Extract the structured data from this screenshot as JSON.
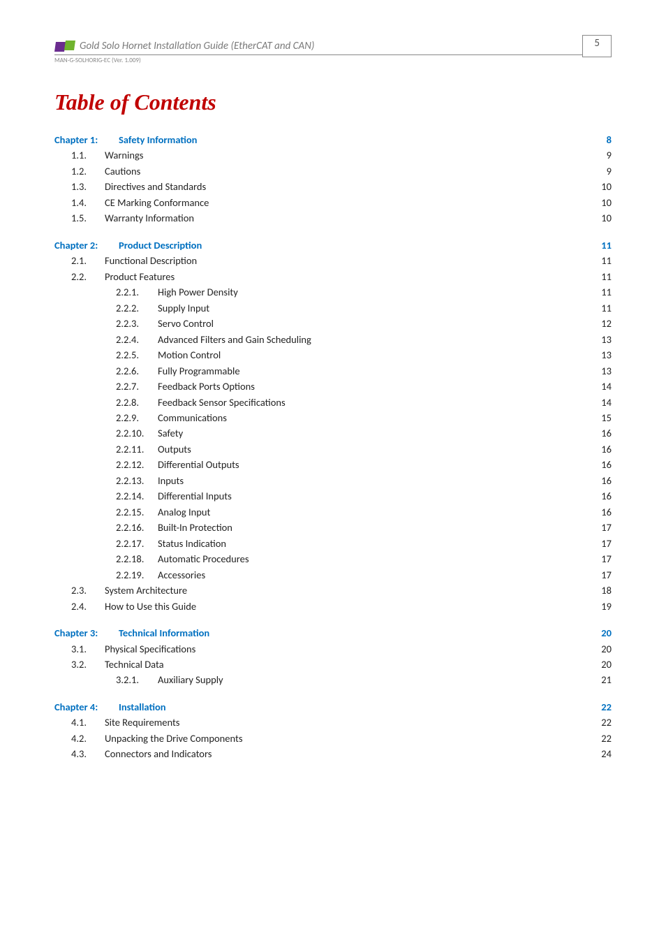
{
  "header": {
    "title": "Gold Solo Hornet Installation Guide (EtherCAT and CAN)",
    "sub": "MAN-G-SOLHORIG-EC (Ver. 1.009)",
    "page_number": "5"
  },
  "toc_title": "Table of Contents",
  "colors": {
    "chapter": "#0070c0",
    "title": "#c00000",
    "body": "#222222"
  },
  "entries": [
    {
      "level": 0,
      "num": "Chapter 1:",
      "label": "Safety Information",
      "page": "8"
    },
    {
      "level": 1,
      "num": "1.1.",
      "label": "Warnings",
      "page": "9"
    },
    {
      "level": 1,
      "num": "1.2.",
      "label": "Cautions",
      "page": "9"
    },
    {
      "level": 1,
      "num": "1.3.",
      "label": "Directives and Standards",
      "page": "10"
    },
    {
      "level": 1,
      "num": "1.4.",
      "label": "CE Marking Conformance",
      "page": "10"
    },
    {
      "level": 1,
      "num": "1.5.",
      "label": "Warranty Information",
      "page": "10"
    },
    {
      "level": 0,
      "num": "Chapter 2:",
      "label": "Product Description",
      "page": "11"
    },
    {
      "level": 1,
      "num": "2.1.",
      "label": "Functional Description",
      "page": "11"
    },
    {
      "level": 1,
      "num": "2.2.",
      "label": "Product Features",
      "page": "11"
    },
    {
      "level": 2,
      "num": "2.2.1.",
      "label": "High Power Density",
      "page": "11"
    },
    {
      "level": 2,
      "num": "2.2.2.",
      "label": "Supply Input",
      "page": "11"
    },
    {
      "level": 2,
      "num": "2.2.3.",
      "label": "Servo Control",
      "page": "12"
    },
    {
      "level": 2,
      "num": "2.2.4.",
      "label": "Advanced Filters and Gain Scheduling",
      "page": "13"
    },
    {
      "level": 2,
      "num": "2.2.5.",
      "label": "Motion Control",
      "page": "13"
    },
    {
      "level": 2,
      "num": "2.2.6.",
      "label": "Fully Programmable",
      "page": "13"
    },
    {
      "level": 2,
      "num": "2.2.7.",
      "label": "Feedback Ports Options",
      "page": "14"
    },
    {
      "level": 2,
      "num": "2.2.8.",
      "label": "Feedback Sensor Specifications",
      "page": "14"
    },
    {
      "level": 2,
      "num": "2.2.9.",
      "label": "Communications",
      "page": "15"
    },
    {
      "level": 2,
      "num": "2.2.10.",
      "label": "Safety",
      "page": "16"
    },
    {
      "level": 2,
      "num": "2.2.11.",
      "label": "Outputs",
      "page": "16"
    },
    {
      "level": 2,
      "num": "2.2.12.",
      "label": "Differential Outputs",
      "page": "16"
    },
    {
      "level": 2,
      "num": "2.2.13.",
      "label": "Inputs",
      "page": "16"
    },
    {
      "level": 2,
      "num": "2.2.14.",
      "label": "Differential Inputs",
      "page": "16"
    },
    {
      "level": 2,
      "num": "2.2.15.",
      "label": "Analog Input",
      "page": "16"
    },
    {
      "level": 2,
      "num": "2.2.16.",
      "label": "Built-In Protection",
      "page": "17"
    },
    {
      "level": 2,
      "num": "2.2.17.",
      "label": "Status Indication",
      "page": "17"
    },
    {
      "level": 2,
      "num": "2.2.18.",
      "label": "Automatic Procedures",
      "page": "17"
    },
    {
      "level": 2,
      "num": "2.2.19.",
      "label": "Accessories",
      "page": "17"
    },
    {
      "level": 1,
      "num": "2.3.",
      "label": "System Architecture",
      "page": "18"
    },
    {
      "level": 1,
      "num": "2.4.",
      "label": "How to Use this Guide",
      "page": "19"
    },
    {
      "level": 0,
      "num": "Chapter 3:",
      "label": "Technical Information",
      "page": "20"
    },
    {
      "level": 1,
      "num": "3.1.",
      "label": "Physical Specifications",
      "page": "20"
    },
    {
      "level": 1,
      "num": "3.2.",
      "label": "Technical Data",
      "page": "20"
    },
    {
      "level": 2,
      "num": "3.2.1.",
      "label": "Auxiliary Supply",
      "page": "21"
    },
    {
      "level": 0,
      "num": "Chapter 4:",
      "label": "Installation",
      "page": "22"
    },
    {
      "level": 1,
      "num": "4.1.",
      "label": "Site Requirements",
      "page": "22"
    },
    {
      "level": 1,
      "num": "4.2.",
      "label": "Unpacking the Drive Components",
      "page": "22"
    },
    {
      "level": 1,
      "num": "4.3.",
      "label": "Connectors and Indicators",
      "page": "24"
    }
  ]
}
